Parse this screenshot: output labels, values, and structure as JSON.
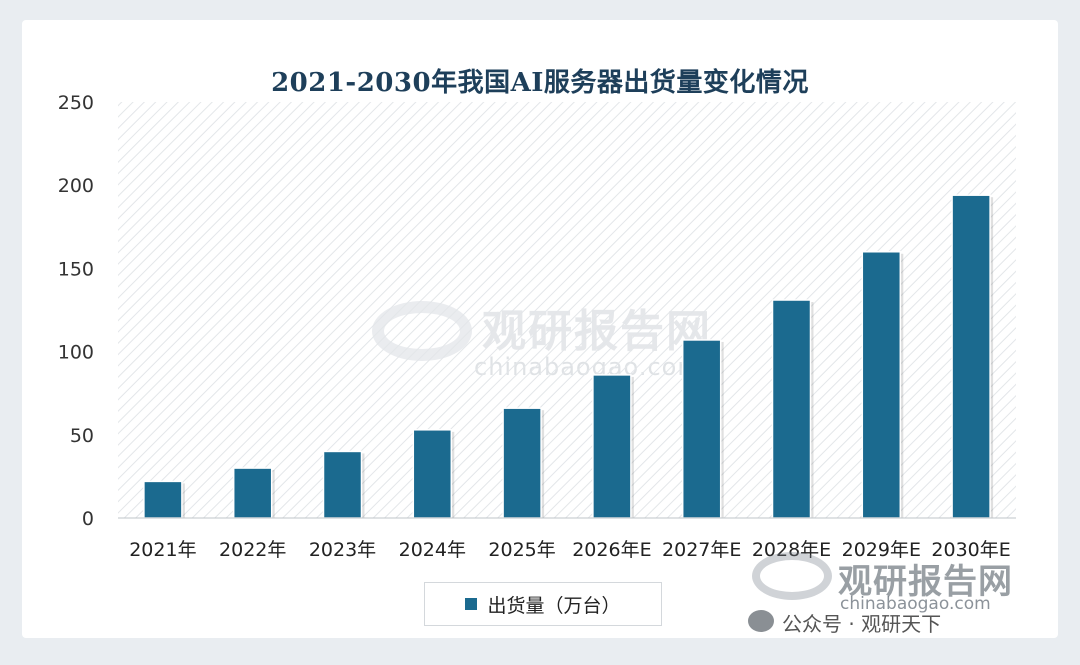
{
  "chart_data": {
    "type": "bar",
    "title": "2021-2030年我国AI服务器出货量变化情况",
    "categories": [
      "2021年",
      "2022年",
      "2023年",
      "2024年",
      "2025年",
      "2026年E",
      "2027年E",
      "2028年E",
      "2029年E",
      "2030年E"
    ],
    "series": [
      {
        "name": "出货量（万台）",
        "values": [
          22,
          30,
          40,
          53,
          66,
          86,
          107,
          131,
          160,
          194
        ]
      }
    ],
    "ylim": [
      0,
      250
    ],
    "yticks": [
      0,
      50,
      100,
      150,
      200,
      250
    ],
    "xlabel": "",
    "ylabel": "",
    "grid": false,
    "legend_position": "bottom-center",
    "bar_color": "#1b6a8f"
  },
  "watermark": {
    "brand": "观研报告网",
    "site": "chinabaogao.com",
    "account": "公众号 · 观研天下"
  }
}
